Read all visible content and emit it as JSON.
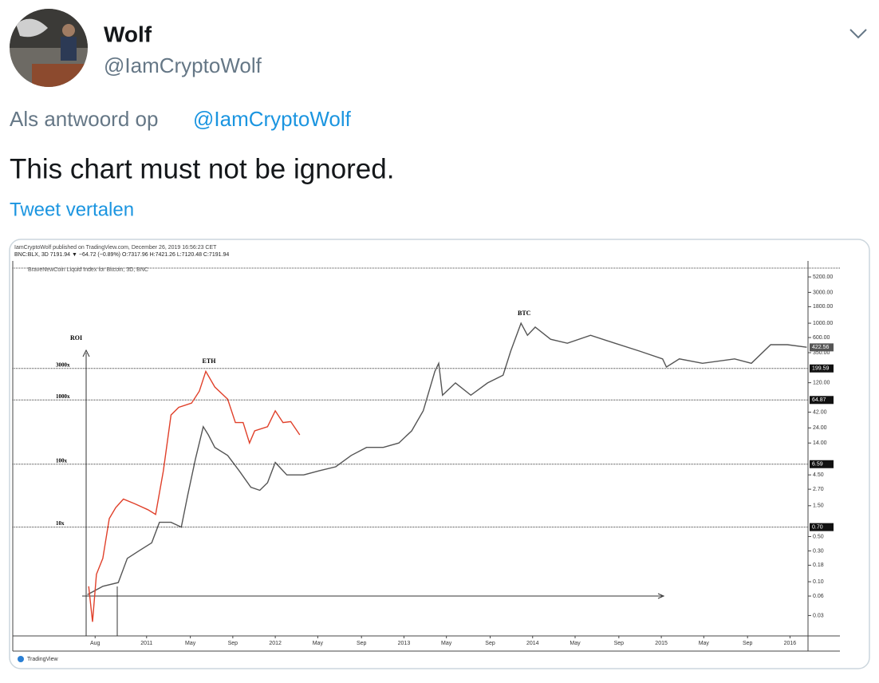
{
  "tweet": {
    "name": "Wolf",
    "handle": "@IamCryptoWolf",
    "reply_prefix": "Als antwoord op",
    "reply_to": "@IamCryptoWolf",
    "text": "This chart must not be ignored.",
    "translate": "Tweet vertalen"
  },
  "chart_data": {
    "type": "line",
    "title": "IamCryptoWolf published on TradingView.com, December 26, 2019 16:56:23 CET",
    "subtitle": "BNC:BLX, 3D 7191.94 ▼ −64.72 (−0.89%) O:7317.96 H:7421.26 L:7120.48 C:7191.94",
    "legend_text": "BraveNewCoin Liquid Index for Bitcoin, 3D, BNC",
    "footer": "TradingView",
    "roi_label": "ROI",
    "log_scale": true,
    "xlim": [
      2009.96,
      2016.14
    ],
    "ylim": [
      0.0145,
      9200
    ],
    "xticks": [
      {
        "value": 2010.6,
        "label": "Aug"
      },
      2011,
      {
        "value": 2011.34,
        "label": "May"
      },
      {
        "value": 2011.67,
        "label": "Sep"
      },
      2012,
      {
        "value": 2012.33,
        "label": "May"
      },
      {
        "value": 2012.67,
        "label": "Sep"
      },
      2013,
      {
        "value": 2013.33,
        "label": "May"
      },
      {
        "value": 2013.67,
        "label": "Sep"
      },
      2014,
      {
        "value": 2014.33,
        "label": "May"
      },
      {
        "value": 2014.67,
        "label": "Sep"
      },
      2015,
      {
        "value": 2015.33,
        "label": "May"
      },
      {
        "value": 2015.67,
        "label": "Sep"
      },
      2016
    ],
    "yticks": [
      {
        "value": 5200,
        "label": "5200.00"
      },
      {
        "value": 3000,
        "label": "3000.00"
      },
      {
        "value": 1800,
        "label": "1800.00"
      },
      {
        "value": 1000,
        "label": "1000.00"
      },
      {
        "value": 600,
        "label": "600.00"
      },
      {
        "value": 350,
        "label": "350.00"
      },
      {
        "value": 120,
        "label": "120.00"
      },
      {
        "value": 42,
        "label": "42.00"
      },
      {
        "value": 24,
        "label": "24.00"
      },
      {
        "value": 14,
        "label": "14.00"
      },
      {
        "value": 4.5,
        "label": "4.50"
      },
      {
        "value": 2.7,
        "label": "2.70"
      },
      {
        "value": 1.5,
        "label": "1.50"
      },
      {
        "value": 0.5,
        "label": "0.50"
      },
      {
        "value": 0.3,
        "label": "0.30"
      },
      {
        "value": 0.18,
        "label": "0.18"
      },
      {
        "value": 0.1,
        "label": "0.10"
      },
      {
        "value": 0.06,
        "label": "0.06"
      },
      {
        "value": 0.03,
        "label": "0.03"
      }
    ],
    "last_price": 422.56,
    "levels": [
      {
        "value": 199.59,
        "roi": "3000x"
      },
      {
        "value": 64.87,
        "roi": "1000x"
      },
      {
        "value": 6.59,
        "roi": "100x"
      },
      {
        "value": 0.7,
        "label": "0.70",
        "roi": "10x"
      }
    ],
    "series": [
      {
        "name": "BTC",
        "color": "#555555",
        "x": [
          2010.54,
          2010.66,
          2010.78,
          2010.85,
          2010.94,
          2011.04,
          2011.1,
          2011.19,
          2011.27,
          2011.32,
          2011.38,
          2011.44,
          2011.48,
          2011.53,
          2011.63,
          2011.72,
          2011.81,
          2011.88,
          2011.94,
          2012.0,
          2012.09,
          2012.22,
          2012.34,
          2012.47,
          2012.59,
          2012.71,
          2012.84,
          2012.96,
          2013.06,
          2013.15,
          2013.24,
          2013.27,
          2013.3,
          2013.4,
          2013.52,
          2013.65,
          2013.77,
          2013.83,
          2013.91,
          2013.96,
          2014.02,
          2014.14,
          2014.27,
          2014.45,
          2014.64,
          2014.83,
          2015.01,
          2015.04,
          2015.14,
          2015.32,
          2015.57,
          2015.7,
          2015.85,
          2015.98,
          2016.13
        ],
        "values": [
          0.063,
          0.085,
          0.097,
          0.23,
          0.3,
          0.4,
          0.83,
          0.83,
          0.7,
          2.2,
          8,
          25,
          18.7,
          12,
          9,
          5.2,
          2.9,
          2.6,
          3.4,
          7,
          4.5,
          4.5,
          5.2,
          6,
          9,
          12,
          12,
          14,
          21.6,
          44,
          180,
          240,
          77,
          119,
          77,
          119,
          157,
          370,
          1000,
          650,
          870,
          565,
          490,
          650,
          490,
          370,
          280,
          210,
          280,
          240,
          280,
          240,
          465,
          465,
          425
        ]
      },
      {
        "name": "ETH",
        "color": "#e0402a",
        "x": [
          2010.55,
          2010.58,
          2010.61,
          2010.66,
          2010.71,
          2010.76,
          2010.82,
          2010.91,
          2011.01,
          2011.07,
          2011.13,
          2011.19,
          2011.25,
          2011.35,
          2011.41,
          2011.46,
          2011.53,
          2011.63,
          2011.69,
          2011.75,
          2011.8,
          2011.84,
          2011.94,
          2012.0,
          2012.06,
          2012.12,
          2012.19
        ],
        "values": [
          0.085,
          0.024,
          0.13,
          0.23,
          0.95,
          1.4,
          1.9,
          1.6,
          1.3,
          1.1,
          5.2,
          38,
          50,
          58,
          89,
          180,
          103,
          67,
          29,
          29,
          14,
          21.6,
          25,
          44,
          29,
          30,
          18.7
        ]
      }
    ]
  }
}
